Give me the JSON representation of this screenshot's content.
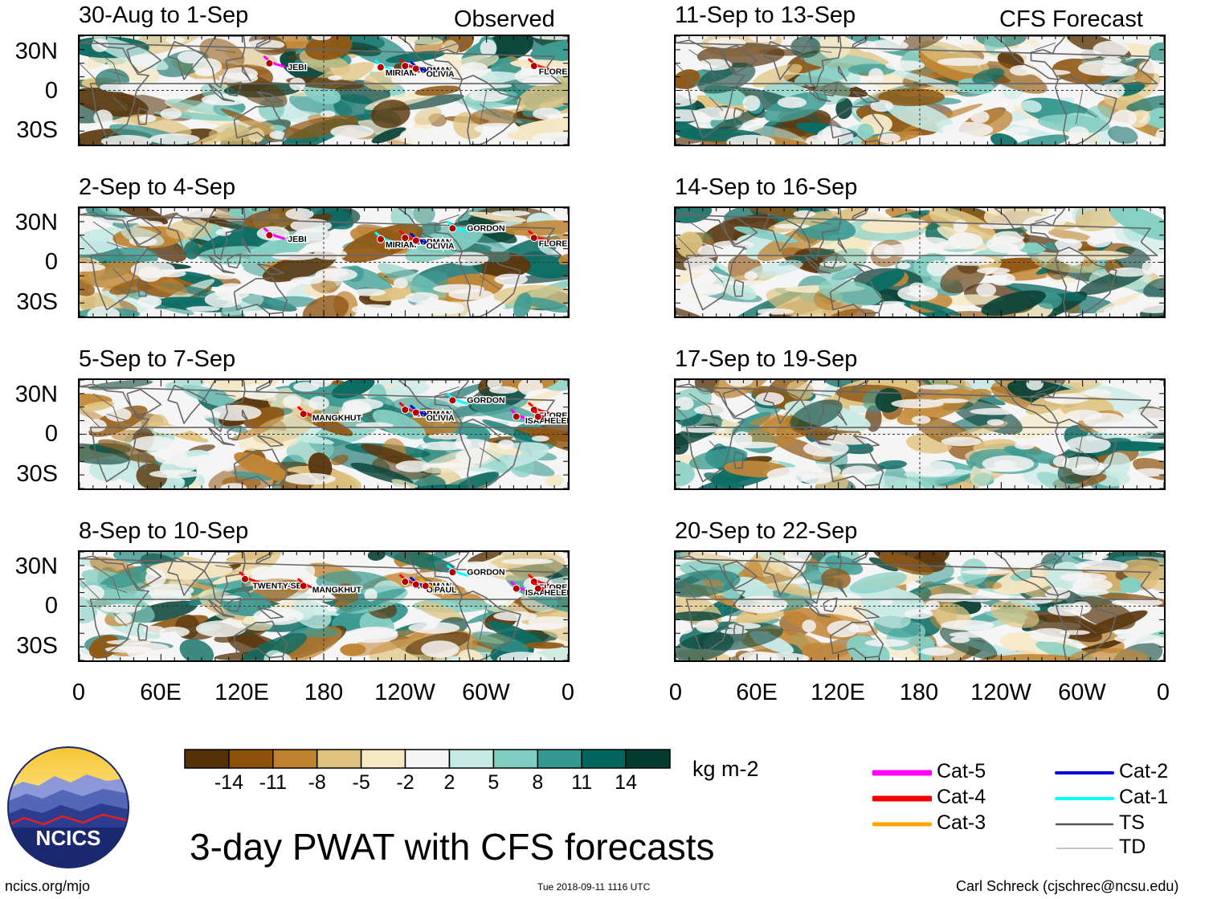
{
  "headers": {
    "observed": "Observed",
    "forecast": "CFS Forecast"
  },
  "lat_labels": [
    "30N",
    "0",
    "30S"
  ],
  "lon_labels": [
    "0",
    "60E",
    "120E",
    "180",
    "120W",
    "60W",
    "0"
  ],
  "panels_observed": [
    {
      "title": "30-Aug to 1-Sep",
      "storms": [
        "JEBI",
        "MIRIAM",
        "NORMAN",
        "OLIVIA",
        "FLORENCE"
      ]
    },
    {
      "title": "2-Sep to 4-Sep",
      "storms": [
        "JEBI",
        "MIRIAM",
        "NORMAN",
        "OLIVIA",
        "GORDON",
        "FLORENCE"
      ]
    },
    {
      "title": "5-Sep to 7-Sep",
      "storms": [
        "MANGKHUT",
        "NORMAN",
        "OLIVIA",
        "GORDON",
        "FLORENCE",
        "ISAAC",
        "HELENE"
      ]
    },
    {
      "title": "8-Sep to 10-Sep",
      "storms": [
        "TWENTY-SE",
        "MANGKHUT",
        "NORMAN",
        "OLIVIA",
        "PAUL",
        "GORDON",
        "FLORENCE",
        "ISAAC",
        "HELENE"
      ]
    }
  ],
  "panels_forecast": [
    {
      "title": "11-Sep to 13-Sep"
    },
    {
      "title": "14-Sep to 16-Sep"
    },
    {
      "title": "17-Sep to 19-Sep"
    },
    {
      "title": "20-Sep to 22-Sep"
    }
  ],
  "colorbar": {
    "colors": [
      "#543005",
      "#8c510a",
      "#bf812d",
      "#dfc27d",
      "#f6e8c3",
      "#f5f5f5",
      "#c7eae5",
      "#80cdc1",
      "#35978f",
      "#01665e",
      "#003c30"
    ],
    "labels": [
      "-14",
      "-11",
      "-8",
      "-5",
      "-2",
      "2",
      "5",
      "8",
      "11",
      "14"
    ],
    "units": "kg m-2"
  },
  "legend": [
    {
      "label": "Cat-5",
      "color": "#ff00ff"
    },
    {
      "label": "Cat-4",
      "color": "#ee0000"
    },
    {
      "label": "Cat-3",
      "color": "#ffa500"
    },
    {
      "label": "Cat-2",
      "color": "#0000dd"
    },
    {
      "label": "Cat-1",
      "color": "#00ffff"
    },
    {
      "label": "TS",
      "color": "#555555"
    },
    {
      "label": "TD",
      "color": "#888888"
    }
  ],
  "title": "3-day PWAT with CFS forecasts",
  "logo_text": "NCICS",
  "footer": {
    "website": "ncics.org/mjo",
    "timestamp": "Tue 2018-09-11 1116 UTC",
    "credit": "Carl Schreck (cjschrec@ncsu.edu)"
  }
}
